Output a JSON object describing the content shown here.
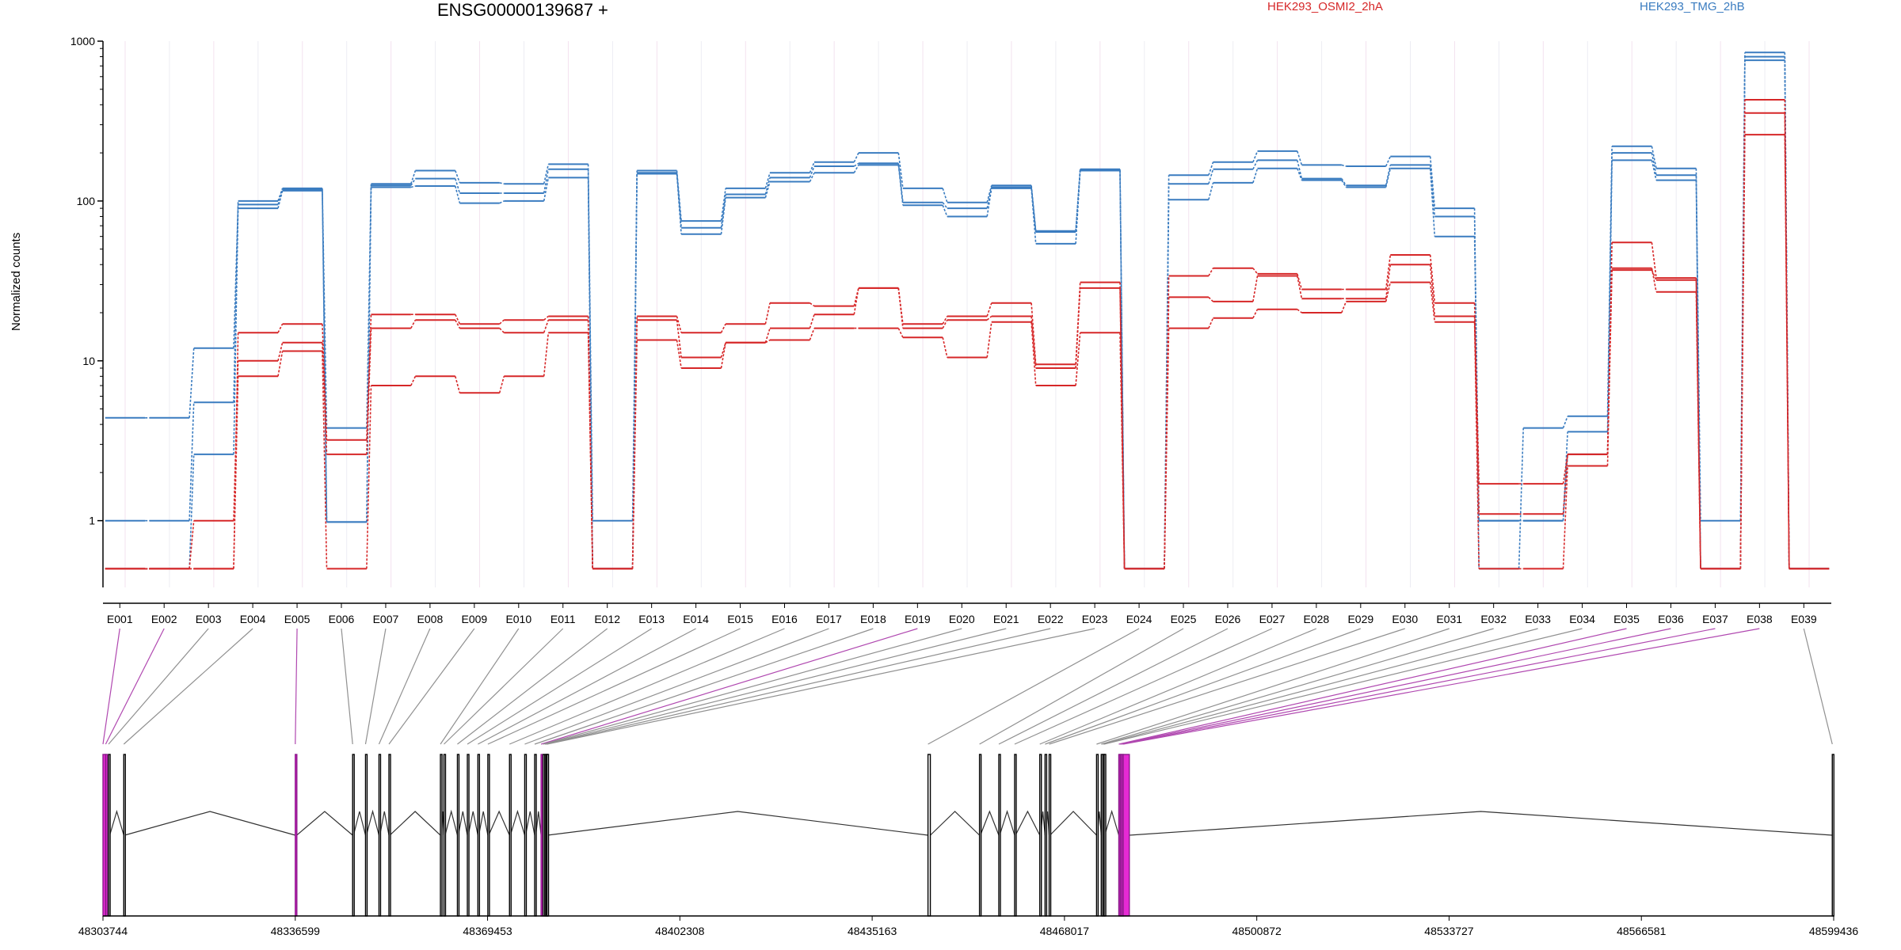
{
  "chart_data": {
    "type": "line",
    "title": "ENSG00000139687 +",
    "ylabel": "Normalized counts",
    "yscale": "log",
    "ylim": [
      0.4,
      1000
    ],
    "yticks": [
      1,
      10,
      100,
      1000
    ],
    "ytick_labels": [
      "1",
      "10",
      "100",
      "1000"
    ],
    "categories": [
      "E001",
      "E002",
      "E003",
      "E004",
      "E005",
      "E006",
      "E007",
      "E008",
      "E009",
      "E010",
      "E011",
      "E012",
      "E013",
      "E014",
      "E015",
      "E016",
      "E017",
      "E018",
      "E019",
      "E020",
      "E021",
      "E022",
      "E023",
      "E024",
      "E025",
      "E026",
      "E027",
      "E028",
      "E029",
      "E030",
      "E031",
      "E032",
      "E033",
      "E034",
      "E035",
      "E036",
      "E037",
      "E038",
      "E039"
    ],
    "legend": [
      {
        "name": "HEK293_OSMI2_2hA",
        "color": "#d62728"
      },
      {
        "name": "HEK293_TMG_2hB",
        "color": "#3a7cc0"
      }
    ],
    "series": [
      {
        "group": "HEK293_TMG_2hB",
        "color": "#3a7cc0",
        "values": [
          4.4,
          4.4,
          12,
          95,
          118,
          3.8,
          128,
          155,
          130,
          128,
          170,
          1.0,
          155,
          75,
          120,
          150,
          175,
          200,
          120,
          98,
          125,
          65,
          158,
          0.5,
          145,
          175,
          205,
          168,
          165,
          190,
          90,
          0.5,
          3.8,
          4.5,
          220,
          160,
          1.0,
          850,
          0.5
        ]
      },
      {
        "group": "HEK293_TMG_2hB",
        "color": "#3a7cc0",
        "values": [
          1.0,
          1.0,
          5.5,
          100,
          120,
          0.98,
          125,
          138,
          112,
          112,
          158,
          0.5,
          150,
          68,
          110,
          140,
          165,
          172,
          98,
          90,
          122,
          64,
          155,
          0.5,
          128,
          158,
          180,
          138,
          125,
          168,
          80,
          1.0,
          1.0,
          3.6,
          200,
          145,
          0.5,
          800,
          0.5
        ]
      },
      {
        "group": "HEK293_TMG_2hB",
        "color": "#3a7cc0",
        "values": [
          0.5,
          0.5,
          2.6,
          90,
          116,
          0.98,
          122,
          124,
          97,
          100,
          140,
          0.5,
          148,
          62,
          105,
          132,
          150,
          168,
          94,
          80,
          120,
          54,
          155,
          0.5,
          102,
          130,
          160,
          135,
          122,
          160,
          60,
          1.0,
          1.0,
          2.6,
          180,
          135,
          0.5,
          760,
          0.5
        ]
      },
      {
        "group": "HEK293_OSMI2_2hA",
        "color": "#d62728",
        "values": [
          0.5,
          0.5,
          0.5,
          15,
          17,
          3.2,
          19.5,
          19.5,
          17,
          18,
          19,
          0.5,
          19,
          15,
          17,
          23,
          22,
          28.5,
          17,
          19,
          23,
          9.5,
          31,
          0.5,
          34,
          38,
          35,
          28,
          28,
          46,
          23,
          1.7,
          1.7,
          2.6,
          55,
          33,
          0.5,
          430,
          0.5
        ]
      },
      {
        "group": "HEK293_OSMI2_2hA",
        "color": "#d62728",
        "values": [
          0.5,
          0.5,
          1.0,
          10,
          13,
          2.6,
          16,
          18,
          16,
          15,
          18,
          0.5,
          18,
          10.5,
          13,
          16,
          19.5,
          28.5,
          16,
          18,
          19,
          9,
          28.5,
          0.5,
          25,
          23.5,
          34,
          24.5,
          24.5,
          40,
          19,
          1.1,
          1.1,
          2.6,
          37,
          32,
          0.5,
          355,
          0.5
        ]
      },
      {
        "group": "HEK293_OSMI2_2hA",
        "color": "#d62728",
        "values": [
          0.5,
          0.5,
          0.5,
          8,
          11.5,
          0.5,
          7,
          8,
          6.3,
          8,
          15,
          0.5,
          13.5,
          9,
          13,
          13.5,
          16,
          16,
          14,
          10.5,
          17.5,
          7,
          15,
          0.5,
          16,
          18.5,
          21,
          20,
          23.5,
          31,
          17.5,
          0.5,
          0.5,
          2.2,
          38,
          27,
          0.5,
          260,
          0.5
        ]
      }
    ],
    "genomic_axis": {
      "ticks": [
        48303744,
        48336599,
        48369453,
        48402308,
        48435163,
        48468017,
        48500872,
        48533727,
        48566581,
        48599436
      ],
      "tick_labels": [
        "48303744",
        "48336599",
        "48369453",
        "48402308",
        "48435163",
        "48468017",
        "48500872",
        "48533727",
        "48566581",
        "48599436"
      ]
    },
    "exons": [
      {
        "id": "E001",
        "start": 48303744,
        "end": 48304200,
        "highlight": true
      },
      {
        "id": "E002",
        "start": 48304200,
        "end": 48304500,
        "highlight": true
      },
      {
        "id": "E003",
        "start": 48304700,
        "end": 48304900,
        "highlight": false
      },
      {
        "id": "E004",
        "start": 48307300,
        "end": 48307450,
        "highlight": false
      },
      {
        "id": "E005",
        "start": 48336599,
        "end": 48336850,
        "highlight": true
      },
      {
        "id": "E006",
        "start": 48346400,
        "end": 48346550,
        "highlight": false
      },
      {
        "id": "E007",
        "start": 48348600,
        "end": 48348750,
        "highlight": false
      },
      {
        "id": "E008",
        "start": 48350900,
        "end": 48351050,
        "highlight": false
      },
      {
        "id": "E009",
        "start": 48352600,
        "end": 48352750,
        "highlight": false
      },
      {
        "id": "E010",
        "start": 48361400,
        "end": 48361600,
        "highlight": false
      },
      {
        "id": "E011",
        "start": 48362000,
        "end": 48362200,
        "highlight": false
      },
      {
        "id": "E012",
        "start": 48364300,
        "end": 48364450,
        "highlight": false
      },
      {
        "id": "E013",
        "start": 48366000,
        "end": 48366150,
        "highlight": false
      },
      {
        "id": "E014",
        "start": 48367800,
        "end": 48367950,
        "highlight": false
      },
      {
        "id": "E015",
        "start": 48369500,
        "end": 48369650,
        "highlight": false
      },
      {
        "id": "E016",
        "start": 48373200,
        "end": 48373350,
        "highlight": false
      },
      {
        "id": "E017",
        "start": 48375800,
        "end": 48375950,
        "highlight": false
      },
      {
        "id": "E018",
        "start": 48377500,
        "end": 48377700,
        "highlight": false
      },
      {
        "id": "E019",
        "start": 48378600,
        "end": 48378800,
        "highlight": true
      },
      {
        "id": "E020",
        "start": 48378950,
        "end": 48379150,
        "highlight": false
      },
      {
        "id": "E021",
        "start": 48379250,
        "end": 48379400,
        "highlight": false
      },
      {
        "id": "E022",
        "start": 48379450,
        "end": 48379550,
        "highlight": false
      },
      {
        "id": "E023",
        "start": 48379600,
        "end": 48379700,
        "highlight": false
      },
      {
        "id": "E024",
        "start": 48444700,
        "end": 48445100,
        "highlight": false
      },
      {
        "id": "E025",
        "start": 48453500,
        "end": 48453650,
        "highlight": false
      },
      {
        "id": "E026",
        "start": 48456800,
        "end": 48456950,
        "highlight": false
      },
      {
        "id": "E027",
        "start": 48459500,
        "end": 48459650,
        "highlight": false
      },
      {
        "id": "E028",
        "start": 48463800,
        "end": 48463950,
        "highlight": false
      },
      {
        "id": "E029",
        "start": 48464700,
        "end": 48464850,
        "highlight": false
      },
      {
        "id": "E030",
        "start": 48465400,
        "end": 48465550,
        "highlight": false
      },
      {
        "id": "E031",
        "start": 48473500,
        "end": 48473650,
        "highlight": false
      },
      {
        "id": "E032",
        "start": 48474300,
        "end": 48474450,
        "highlight": false
      },
      {
        "id": "E033",
        "start": 48474600,
        "end": 48474750,
        "highlight": false
      },
      {
        "id": "E034",
        "start": 48474800,
        "end": 48474900,
        "highlight": false
      },
      {
        "id": "E035",
        "start": 48477300,
        "end": 48477500,
        "highlight": true
      },
      {
        "id": "E036",
        "start": 48477550,
        "end": 48477750,
        "highlight": true
      },
      {
        "id": "E037",
        "start": 48477800,
        "end": 48478000,
        "highlight": true
      },
      {
        "id": "E038",
        "start": 48478050,
        "end": 48479100,
        "highlight": true
      },
      {
        "id": "E039",
        "start": 48599200,
        "end": 48599436,
        "highlight": false
      }
    ]
  }
}
